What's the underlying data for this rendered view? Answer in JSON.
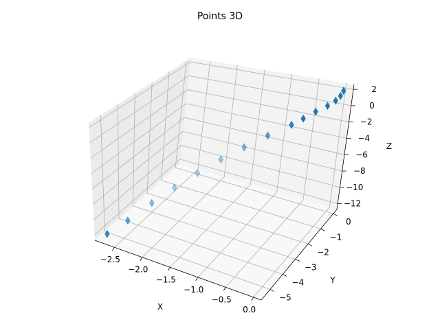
{
  "chart_data": {
    "type": "scatter",
    "projection": "3d",
    "title": "Points 3D",
    "xlabel": "X",
    "ylabel": "Y",
    "zlabel": "Z",
    "xlim": [
      -2.85,
      0.14
    ],
    "ylim": [
      -5.7,
      0.28
    ],
    "zlim": [
      -12.7,
      2.6
    ],
    "xticks": [
      -2.5,
      -2.0,
      -1.5,
      -1.0,
      -0.5,
      0.0
    ],
    "yticks": [
      -5,
      -4,
      -3,
      -2,
      -1,
      0
    ],
    "zticks": [
      -12,
      -10,
      -8,
      -6,
      -4,
      -2,
      0,
      2
    ],
    "xtick_labels": [
      "−2.5",
      "−2.0",
      "−1.5",
      "−1.0",
      "−0.5",
      "0.0"
    ],
    "ytick_labels": [
      "−5",
      "−4",
      "−3",
      "−2",
      "−1",
      "0"
    ],
    "ztick_labels": [
      "−12",
      "−10",
      "−8",
      "−6",
      "−4",
      "−2",
      "0",
      "2"
    ],
    "grid": true,
    "marker": "thin-diamond",
    "color": "#1f77b4",
    "pane_colors": {
      "x": "#ebebeb",
      "y": "#f3f3f3",
      "z": "#f8f8f8"
    },
    "points": [
      {
        "x": -2.7,
        "y": -5.4,
        "z": -12.0
      },
      {
        "x": -2.45,
        "y": -4.9,
        "z": -10.5
      },
      {
        "x": -2.16,
        "y": -4.32,
        "z": -8.6
      },
      {
        "x": -1.89,
        "y": -3.78,
        "z": -7.0
      },
      {
        "x": -1.62,
        "y": -3.24,
        "z": -5.6
      },
      {
        "x": -1.35,
        "y": -2.7,
        "z": -4.3
      },
      {
        "x": -1.08,
        "y": -2.16,
        "z": -3.2
      },
      {
        "x": -0.81,
        "y": -1.62,
        "z": -2.2
      },
      {
        "x": -0.54,
        "y": -1.08,
        "z": -1.3
      },
      {
        "x": -0.41,
        "y": -0.81,
        "z": -0.75
      },
      {
        "x": -0.27,
        "y": -0.54,
        "z": -0.1
      },
      {
        "x": -0.14,
        "y": -0.27,
        "z": 0.4
      },
      {
        "x": -0.05,
        "y": -0.1,
        "z": 0.9
      },
      {
        "x": 0.0,
        "y": 0.0,
        "z": 1.4
      },
      {
        "x": 0.03,
        "y": 0.05,
        "z": 2.0
      }
    ]
  }
}
